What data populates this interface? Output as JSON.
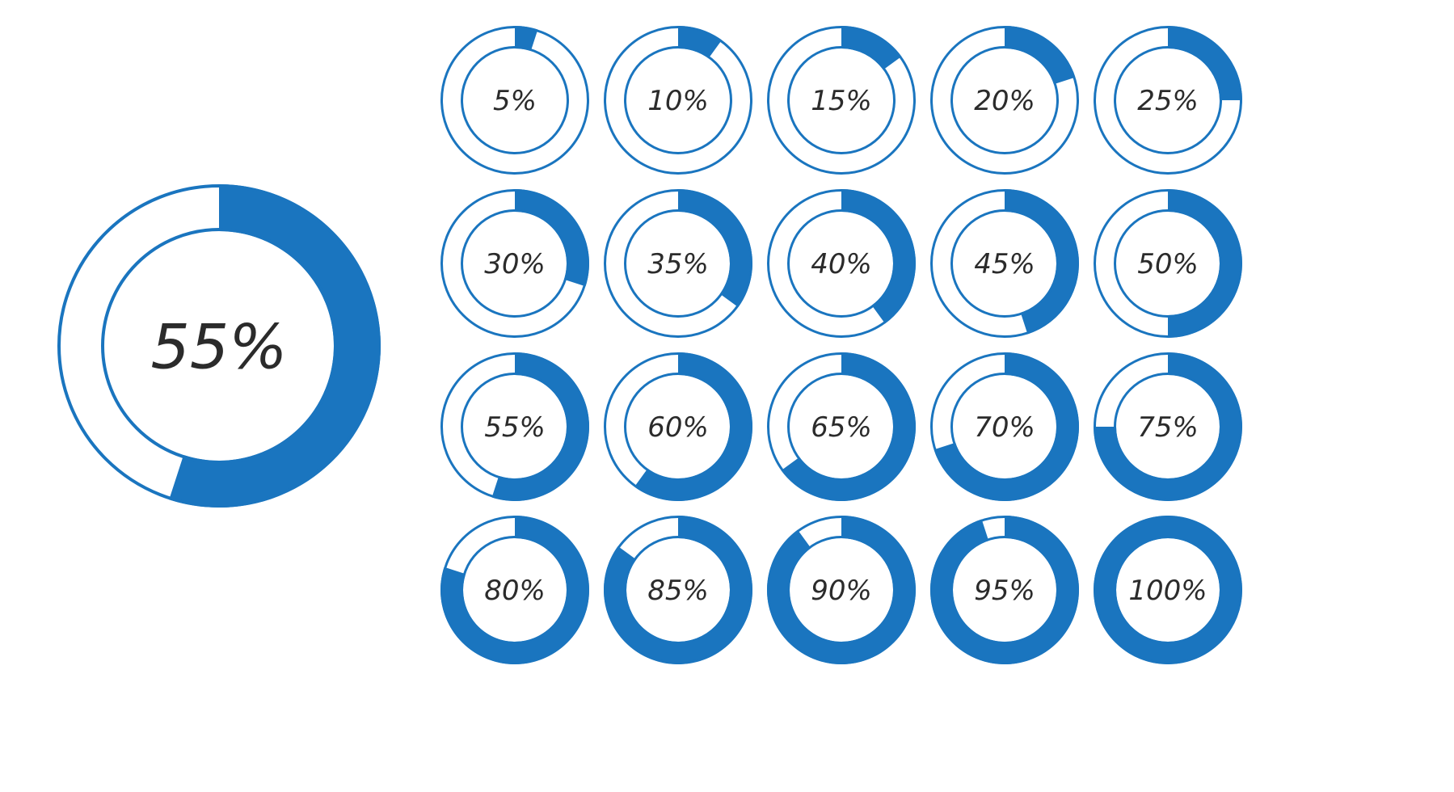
{
  "colors": {
    "accent": "#1a75bf",
    "text": "#2b2b2b",
    "background": "#ffffff"
  },
  "featured": {
    "label": "55%",
    "value": 55
  },
  "rings": [
    {
      "label": "5%",
      "value": 5
    },
    {
      "label": "10%",
      "value": 10
    },
    {
      "label": "15%",
      "value": 15
    },
    {
      "label": "20%",
      "value": 20
    },
    {
      "label": "25%",
      "value": 25
    },
    {
      "label": "30%",
      "value": 30
    },
    {
      "label": "35%",
      "value": 35
    },
    {
      "label": "40%",
      "value": 40
    },
    {
      "label": "45%",
      "value": 45
    },
    {
      "label": "50%",
      "value": 50
    },
    {
      "label": "55%",
      "value": 55
    },
    {
      "label": "60%",
      "value": 60
    },
    {
      "label": "65%",
      "value": 65
    },
    {
      "label": "70%",
      "value": 70
    },
    {
      "label": "75%",
      "value": 75
    },
    {
      "label": "80%",
      "value": 80
    },
    {
      "label": "85%",
      "value": 85
    },
    {
      "label": "90%",
      "value": 90
    },
    {
      "label": "95%",
      "value": 95
    },
    {
      "label": "100%",
      "value": 100
    }
  ]
}
